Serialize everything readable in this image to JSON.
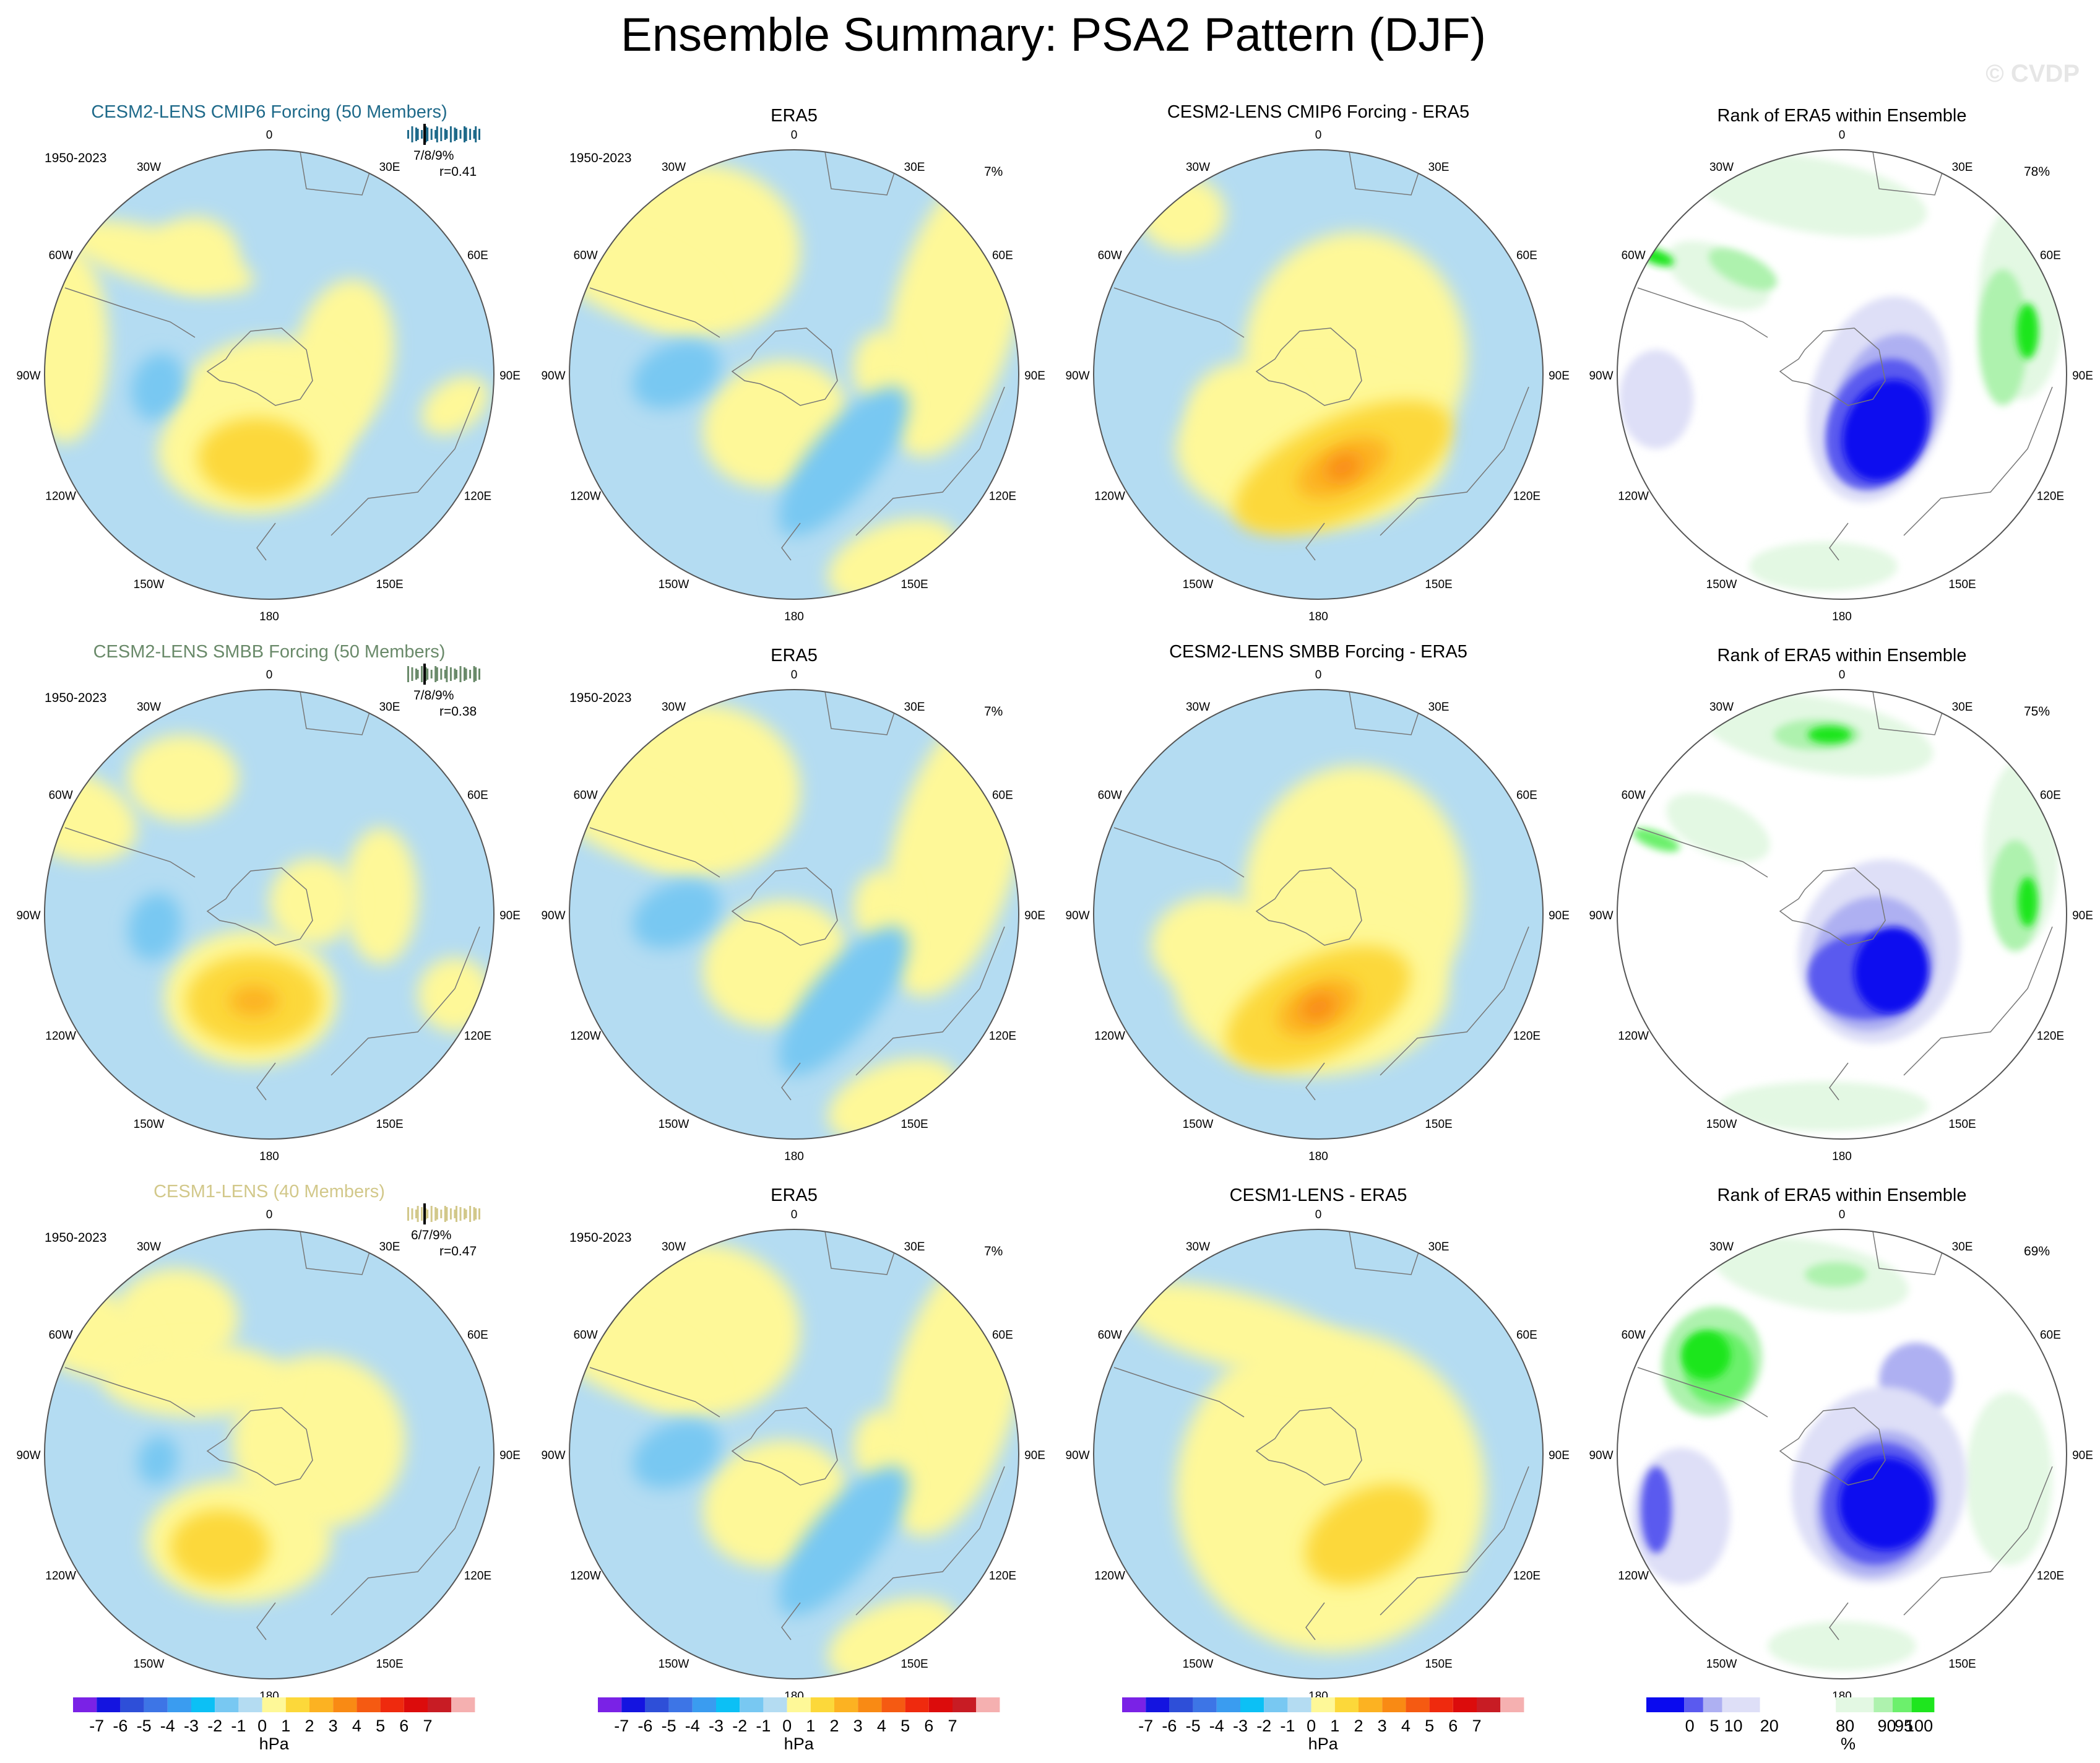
{
  "title": "Ensemble Summary: PSA2 Pattern (DJF)",
  "watermark": "© CVDP",
  "colors": {
    "neg7": "#7a22e6",
    "neg6": "#1414e0",
    "neg5": "#2e4fd8",
    "neg4": "#3d75e6",
    "neg3": "#3a9cf0",
    "neg2": "#0cc0f5",
    "neg1": "#78c8f2",
    "neg0": "#b4dcf2",
    "pos0": "#fef898",
    "pos1": "#fcd83a",
    "pos2": "#fcb222",
    "pos3": "#f98a14",
    "pos4": "#f55a12",
    "pos5": "#ef2a0e",
    "pos6": "#dc0c0c",
    "pos7": "#c81c24",
    "pos8": "#f5b0b0",
    "rank_blue_dark": "#0a0aef",
    "rank_blue_mid": "#5a5aef",
    "rank_blue_light": "#aeb0f2",
    "rank_blue_pale": "#dedff7",
    "rank_green_pale": "#e3f8e3",
    "rank_green_light": "#aef2ae",
    "rank_green_mid": "#6cf06c",
    "rank_green_dark": "#1ee61e",
    "title_cesm2_cmip6": "#1f6a8a",
    "title_cesm2_smbb": "#6a8a6a",
    "title_cesm1": "#d2c88a"
  },
  "lon_labels": [
    "0",
    "30E",
    "60E",
    "90E",
    "120E",
    "150E",
    "180",
    "150W",
    "120W",
    "90W",
    "60W",
    "30W"
  ],
  "chart_data": [
    {
      "type": "map",
      "panel": "r1c1",
      "title": "CESM2-LENS CMIP6 Forcing (50 Members)",
      "period": "1950-2023",
      "pct_text": "7/8/9%",
      "r_text": "r=0.41",
      "units": "hPa"
    },
    {
      "type": "map",
      "panel": "r1c2",
      "title": "ERA5",
      "period": "1950-2023",
      "pct_text": "7%",
      "units": "hPa"
    },
    {
      "type": "map",
      "panel": "r1c3",
      "title": "CESM2-LENS CMIP6 Forcing - ERA5",
      "units": "hPa"
    },
    {
      "type": "map",
      "panel": "r1c4",
      "title": "Rank of ERA5 within Ensemble",
      "pct_text": "78%",
      "units": "%"
    },
    {
      "type": "map",
      "panel": "r2c1",
      "title": "CESM2-LENS SMBB Forcing (50 Members)",
      "period": "1950-2023",
      "pct_text": "7/8/9%",
      "r_text": "r=0.38",
      "units": "hPa"
    },
    {
      "type": "map",
      "panel": "r2c2",
      "title": "ERA5",
      "period": "1950-2023",
      "pct_text": "7%",
      "units": "hPa"
    },
    {
      "type": "map",
      "panel": "r2c3",
      "title": "CESM2-LENS SMBB Forcing - ERA5",
      "units": "hPa"
    },
    {
      "type": "map",
      "panel": "r2c4",
      "title": "Rank of ERA5 within Ensemble",
      "pct_text": "75%",
      "units": "%"
    },
    {
      "type": "map",
      "panel": "r3c1",
      "title": "CESM1-LENS (40 Members)",
      "period": "1950-2023",
      "pct_text": "6/7/9%",
      "r_text": "r=0.47",
      "units": "hPa"
    },
    {
      "type": "map",
      "panel": "r3c2",
      "title": "ERA5",
      "period": "1950-2023",
      "pct_text": "7%",
      "units": "hPa"
    },
    {
      "type": "map",
      "panel": "r3c3",
      "title": "CESM1-LENS - ERA5",
      "units": "hPa"
    },
    {
      "type": "map",
      "panel": "r3c4",
      "title": "Rank of ERA5 within Ensemble",
      "pct_text": "69%",
      "units": "%"
    },
    {
      "type": "colorbar",
      "name": "hPa colorbar",
      "labels": [
        "-7",
        "-6",
        "-5",
        "-4",
        "-3",
        "-2",
        "-1",
        "0",
        "1",
        "2",
        "3",
        "4",
        "5",
        "6",
        "7"
      ],
      "units": "hPa"
    },
    {
      "type": "colorbar",
      "name": "rank colorbar",
      "labels": [
        "0",
        "5",
        "10",
        "20",
        "80",
        "90",
        "95",
        "100"
      ],
      "units": "%"
    }
  ]
}
